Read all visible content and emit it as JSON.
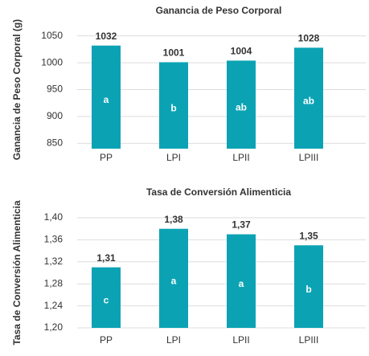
{
  "chart_data": [
    {
      "type": "bar",
      "title": "Ganancia de Peso Corporal",
      "y_label": "Ganancia de Peso Corporal (g)",
      "categories": [
        "PP",
        "LPI",
        "LPII",
        "LPIII"
      ],
      "values": [
        1032,
        1001,
        1004,
        1028
      ],
      "letters": [
        "a",
        "b",
        "ab",
        "ab"
      ],
      "color": "#0ba3b4",
      "ylim": [
        840,
        1060
      ],
      "yticks": [
        850,
        900,
        950,
        1000,
        1050
      ],
      "grid": true
    },
    {
      "type": "bar",
      "title": "Tasa de Conversión Alimenticia",
      "y_label": "Tasa de Conversión Alimenticia",
      "categories": [
        "PP",
        "LPI",
        "LPII",
        "LPIII"
      ],
      "values": [
        1.31,
        1.38,
        1.37,
        1.35
      ],
      "value_labels": [
        "1,31",
        "1,38",
        "1,37",
        "1,35"
      ],
      "letters": [
        "c",
        "a",
        "a",
        "b"
      ],
      "color": "#0ba3b4",
      "ylim": [
        1.2,
        1.4
      ],
      "yticks": [
        {
          "value": 1.2,
          "label": "1,20"
        },
        {
          "value": 1.24,
          "label": "1,24"
        },
        {
          "value": 1.28,
          "label": "1,28"
        },
        {
          "value": 1.32,
          "label": "1,32"
        },
        {
          "value": 1.36,
          "label": "1,36"
        },
        {
          "value": 1.4,
          "label": "1,40"
        }
      ],
      "grid": true
    }
  ]
}
